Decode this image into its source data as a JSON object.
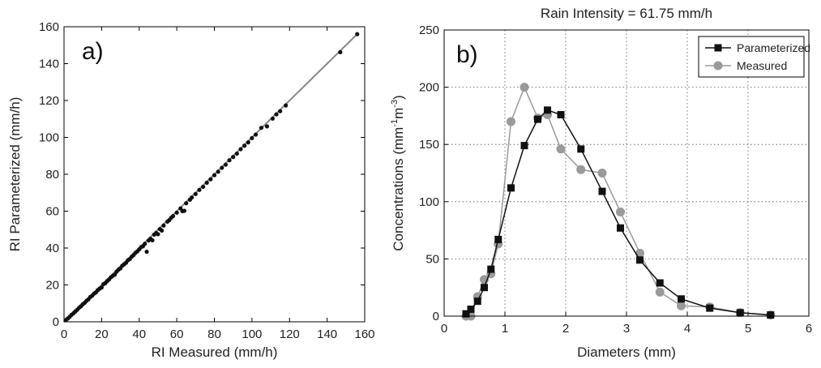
{
  "chart_data": [
    {
      "type": "scatter",
      "panel_label": "a)",
      "title": "",
      "xlabel": "RI Measured (mm/h)",
      "ylabel": "RI Parameterized (mm/h)",
      "xlim": [
        0,
        160
      ],
      "ylim": [
        0,
        160
      ],
      "xticks": [
        0,
        20,
        40,
        60,
        80,
        100,
        120,
        140,
        160
      ],
      "yticks": [
        0,
        20,
        40,
        60,
        80,
        100,
        120,
        140,
        160
      ],
      "grid": false,
      "fit_line": [
        [
          0,
          0
        ],
        [
          156,
          156
        ]
      ],
      "points": [
        [
          1,
          1
        ],
        [
          2,
          1.8
        ],
        [
          3,
          2.7
        ],
        [
          4,
          3.8
        ],
        [
          5,
          4.6
        ],
        [
          6,
          5.6
        ],
        [
          7,
          6.5
        ],
        [
          8,
          7.6
        ],
        [
          9,
          8.4
        ],
        [
          10,
          9.5
        ],
        [
          11,
          10.3
        ],
        [
          12,
          11.4
        ],
        [
          13,
          12.2
        ],
        [
          14,
          13.5
        ],
        [
          15,
          14.2
        ],
        [
          16,
          15.3
        ],
        [
          17,
          16
        ],
        [
          18,
          17.2
        ],
        [
          19,
          18
        ],
        [
          20,
          18.6
        ],
        [
          21,
          20.4
        ],
        [
          22,
          21
        ],
        [
          23,
          22.1
        ],
        [
          24,
          23
        ],
        [
          25,
          24.2
        ],
        [
          26,
          25
        ],
        [
          27,
          25.6
        ],
        [
          28,
          27.2
        ],
        [
          29,
          28.3
        ],
        [
          30,
          29
        ],
        [
          31,
          30.4
        ],
        [
          32,
          31.2
        ],
        [
          33,
          32
        ],
        [
          34,
          33.4
        ],
        [
          35,
          34
        ],
        [
          36,
          35.3
        ],
        [
          37,
          36.2
        ],
        [
          38,
          37.4
        ],
        [
          39,
          38.2
        ],
        [
          40,
          39.3
        ],
        [
          41,
          40.5
        ],
        [
          42,
          41
        ],
        [
          43,
          42.3
        ],
        [
          44,
          38
        ],
        [
          45,
          44.1
        ],
        [
          46,
          45
        ],
        [
          47,
          44.2
        ],
        [
          48,
          47.3
        ],
        [
          49,
          48.2
        ],
        [
          50,
          47.5
        ],
        [
          51,
          50.3
        ],
        [
          52,
          49.5
        ],
        [
          53,
          52.2
        ],
        [
          55,
          54.3
        ],
        [
          56,
          55.1
        ],
        [
          57,
          56.4
        ],
        [
          58,
          57.3
        ],
        [
          60,
          59.2
        ],
        [
          62,
          61.5
        ],
        [
          63,
          60
        ],
        [
          64,
          60.2
        ],
        [
          65,
          64.3
        ],
        [
          67,
          66.2
        ],
        [
          68,
          67.4
        ],
        [
          70,
          69.3
        ],
        [
          72,
          71.5
        ],
        [
          74,
          73.2
        ],
        [
          76,
          75.4
        ],
        [
          78,
          77.3
        ],
        [
          80,
          79.5
        ],
        [
          82,
          81.4
        ],
        [
          84,
          83.5
        ],
        [
          86,
          85.2
        ],
        [
          88,
          87.6
        ],
        [
          90,
          89.4
        ],
        [
          92,
          91.2
        ],
        [
          94,
          93.6
        ],
        [
          96,
          95.5
        ],
        [
          98,
          97.3
        ],
        [
          100,
          99.6
        ],
        [
          102,
          101.5
        ],
        [
          105,
          105.2
        ],
        [
          108,
          106
        ],
        [
          111,
          110.2
        ],
        [
          113,
          112.5
        ],
        [
          115,
          114.2
        ],
        [
          118,
          117.3
        ],
        [
          147,
          146.2
        ],
        [
          156,
          156
        ]
      ]
    },
    {
      "type": "line",
      "panel_label": "b)",
      "title": "Rain Intensity = 61.75 mm/h",
      "xlabel": "Diameters (mm)",
      "ylabel_main": "Concentrations (mm",
      "ylabel_sup1": "-1",
      "ylabel_mid": "m",
      "ylabel_sup2": "-3",
      "ylabel_end": ")",
      "xlim": [
        0,
        6
      ],
      "ylim": [
        0,
        250
      ],
      "xticks": [
        0,
        1,
        2,
        3,
        4,
        5,
        6
      ],
      "yticks": [
        0,
        50,
        100,
        150,
        200,
        250
      ],
      "grid": true,
      "legend_position": "top-right",
      "series": [
        {
          "name": "Parameterized",
          "color": "#111111",
          "marker": "square",
          "x": [
            0.36,
            0.44,
            0.55,
            0.66,
            0.77,
            0.89,
            1.1,
            1.32,
            1.54,
            1.7,
            1.92,
            2.25,
            2.6,
            2.9,
            3.22,
            3.55,
            3.9,
            4.37,
            4.87,
            5.37
          ],
          "y": [
            2,
            6,
            13,
            25,
            41,
            67,
            112,
            149,
            172,
            180,
            176,
            146,
            109,
            77,
            49,
            29,
            15,
            7,
            3,
            1
          ]
        },
        {
          "name": "Measured",
          "color": "#9a9a9a",
          "marker": "circle",
          "x": [
            0.36,
            0.44,
            0.55,
            0.66,
            0.77,
            0.89,
            1.1,
            1.32,
            1.54,
            1.7,
            1.92,
            2.25,
            2.6,
            2.9,
            3.22,
            3.55,
            3.9,
            4.37,
            4.87,
            5.37
          ],
          "y": [
            0,
            0,
            17,
            32,
            37,
            63,
            170,
            200,
            173,
            176,
            146,
            128,
            125,
            91,
            55,
            21,
            9,
            8,
            3,
            1
          ]
        }
      ]
    }
  ]
}
